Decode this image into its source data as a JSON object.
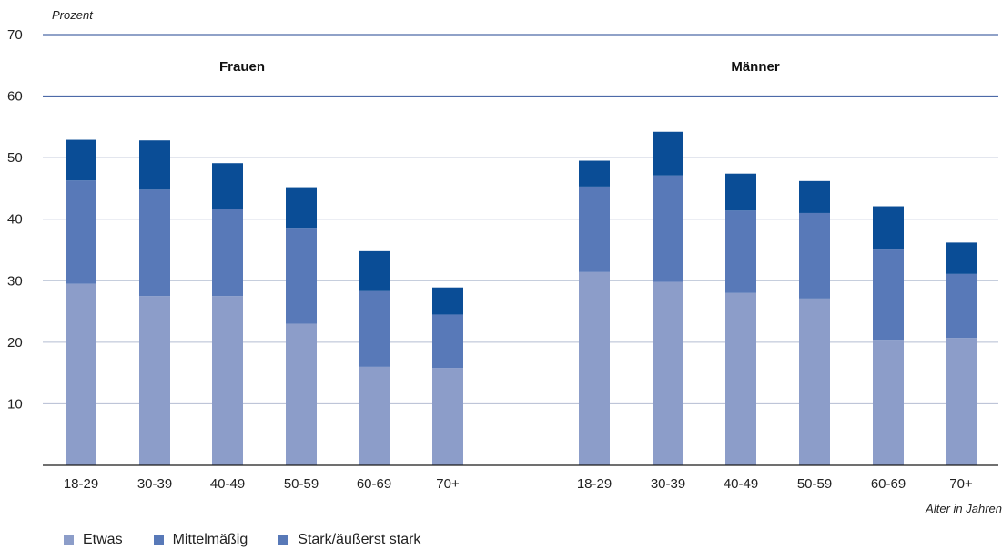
{
  "chart_data": {
    "type": "bar",
    "stacked": true,
    "ylabel": "Prozent",
    "xlabel": "Alter in Jahren",
    "ylim": [
      0,
      70
    ],
    "yticks": [
      10,
      20,
      30,
      40,
      50,
      60,
      70
    ],
    "grid": true,
    "legend_position": "bottom-left",
    "groups": [
      {
        "title": "Frauen",
        "categories": [
          "18-29",
          "30-39",
          "40-49",
          "50-59",
          "60-69",
          "70+"
        ],
        "series": [
          {
            "name": "Etwas",
            "values": [
              29.5,
              27.5,
              27.5,
              23,
              16,
              15.8
            ]
          },
          {
            "name": "Mittelmäßig",
            "values": [
              16.8,
              17.3,
              14.2,
              15.6,
              12.3,
              8.7
            ]
          },
          {
            "name": "Stark/äußerst stark",
            "values": [
              6.6,
              8,
              7.4,
              6.6,
              6.5,
              4.4
            ]
          }
        ]
      },
      {
        "title": "Männer",
        "categories": [
          "18-29",
          "30-39",
          "40-49",
          "50-59",
          "60-69",
          "70+"
        ],
        "series": [
          {
            "name": "Etwas",
            "values": [
              31.4,
              29.8,
              28,
              27.1,
              20.4,
              20.7
            ]
          },
          {
            "name": "Mittelmäßig",
            "values": [
              13.9,
              17.3,
              13.4,
              13.9,
              14.8,
              10.4
            ]
          },
          {
            "name": "Stark/äußerst stark",
            "values": [
              4.2,
              7.1,
              6,
              5.2,
              6.9,
              5.1
            ]
          }
        ]
      }
    ],
    "colors": [
      "#8c9dc9",
      "#5879b8",
      "#0a4d96"
    ],
    "gridline_color": "#b4bdd2",
    "top_line_color": "#4d6aa8",
    "axis_color": "#1a1a1a"
  },
  "legend": [
    {
      "label": "Etwas",
      "color": "#8c9dc9"
    },
    {
      "label": "Mittelmäßig",
      "color": "#5879b8"
    },
    {
      "label": "Stark/äußerst stark",
      "color": "#5879b8"
    }
  ]
}
